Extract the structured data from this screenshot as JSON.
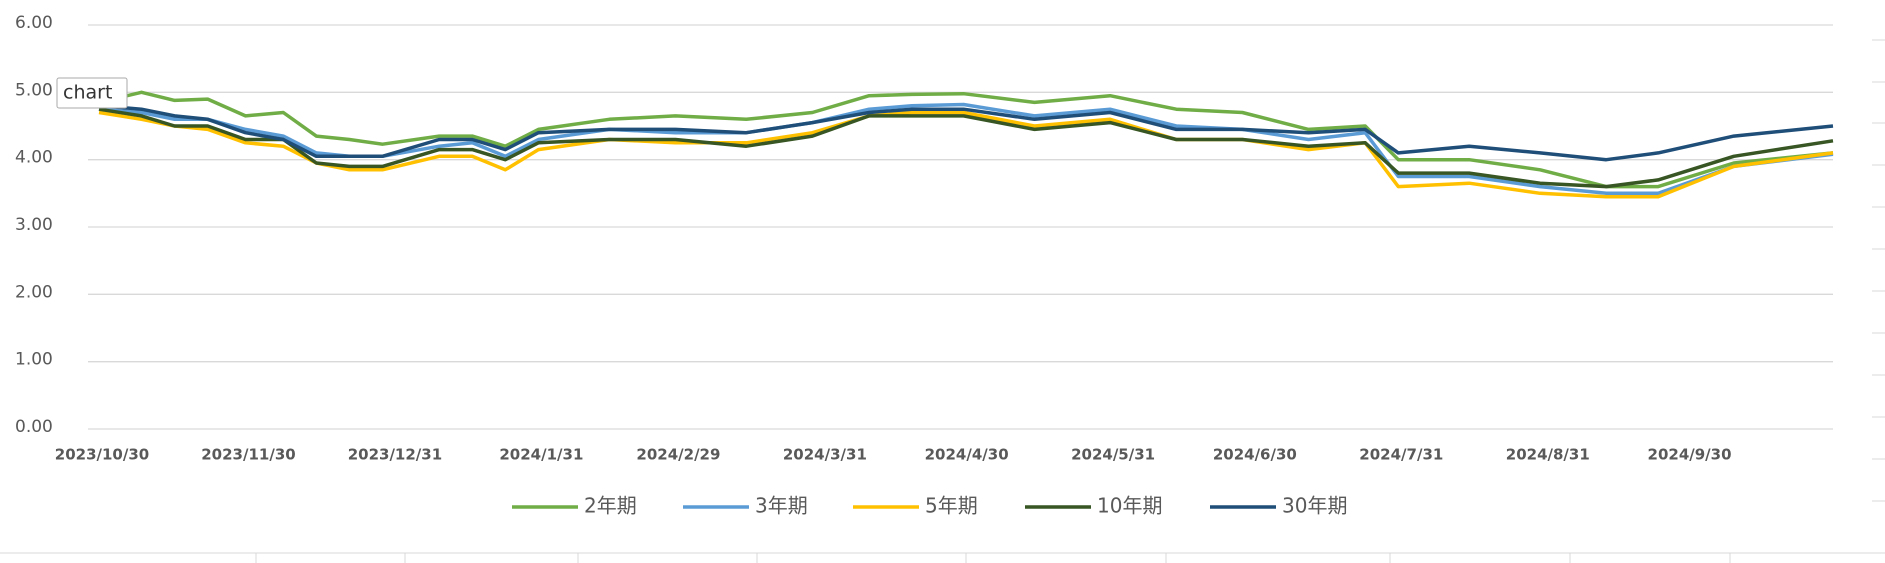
{
  "tooltip": "chart",
  "chart_data": {
    "type": "line",
    "x": [
      "2023/10/30",
      "2023/11/8",
      "2023/11/15",
      "2023/11/22",
      "2023/11/30",
      "2023/12/8",
      "2023/12/15",
      "2023/12/22",
      "2023/12/29",
      "2024/1/10",
      "2024/1/17",
      "2024/1/24",
      "2024/1/31",
      "2024/2/15",
      "2024/2/29",
      "2024/3/15",
      "2024/3/29",
      "2024/4/10",
      "2024/4/19",
      "2024/4/30",
      "2024/5/15",
      "2024/5/31",
      "2024/6/14",
      "2024/6/28",
      "2024/7/12",
      "2024/7/24",
      "2024/7/31",
      "2024/8/15",
      "2024/8/30",
      "2024/9/13",
      "2024/9/24",
      "2024/10/10",
      "2024/10/31"
    ],
    "xlim": [
      "2023/10/30",
      "2024/10/31"
    ],
    "xticks": [
      "2023/10/30",
      "2023/11/30",
      "2023/12/31",
      "2024/1/31",
      "2024/2/29",
      "2024/3/31",
      "2024/4/30",
      "2024/5/31",
      "2024/6/30",
      "2024/7/31",
      "2024/8/31",
      "2024/9/30"
    ],
    "ylim": [
      0,
      6
    ],
    "yticks": [
      {
        "value": 0,
        "label": "0.00"
      },
      {
        "value": 1,
        "label": "1.00"
      },
      {
        "value": 2,
        "label": "2.00"
      },
      {
        "value": 3,
        "label": "3.00"
      },
      {
        "value": 4,
        "label": "4.00"
      },
      {
        "value": 5,
        "label": "5.00"
      },
      {
        "value": 6,
        "label": "6.00"
      }
    ],
    "grid": true,
    "legend": "bottom",
    "series": [
      {
        "name": "2年期",
        "color": "#70ad47",
        "values": [
          4.85,
          5.0,
          4.88,
          4.9,
          4.65,
          4.7,
          4.35,
          4.3,
          4.23,
          4.35,
          4.35,
          4.2,
          4.45,
          4.6,
          4.65,
          4.6,
          4.7,
          4.95,
          4.97,
          4.98,
          4.85,
          4.95,
          4.75,
          4.7,
          4.45,
          4.5,
          4.0,
          4.0,
          3.85,
          3.6,
          3.6,
          3.95,
          4.1
        ]
      },
      {
        "name": "3年期",
        "color": "#5b9bd5",
        "values": [
          4.75,
          4.7,
          4.6,
          4.6,
          4.45,
          4.35,
          4.1,
          4.05,
          4.05,
          4.2,
          4.25,
          4.05,
          4.3,
          4.45,
          4.4,
          4.4,
          4.55,
          4.75,
          4.8,
          4.82,
          4.65,
          4.75,
          4.5,
          4.45,
          4.3,
          4.4,
          3.75,
          3.75,
          3.6,
          3.5,
          3.5,
          3.9,
          4.08
        ]
      },
      {
        "name": "5年期",
        "color": "#ffc000",
        "values": [
          4.7,
          4.6,
          4.5,
          4.45,
          4.25,
          4.2,
          3.95,
          3.85,
          3.85,
          4.05,
          4.05,
          3.85,
          4.15,
          4.3,
          4.25,
          4.25,
          4.4,
          4.65,
          4.7,
          4.7,
          4.5,
          4.6,
          4.3,
          4.3,
          4.15,
          4.25,
          3.6,
          3.65,
          3.5,
          3.45,
          3.45,
          3.9,
          4.1
        ]
      },
      {
        "name": "10年期",
        "color": "#375623",
        "values": [
          4.75,
          4.65,
          4.5,
          4.5,
          4.3,
          4.3,
          3.95,
          3.9,
          3.9,
          4.15,
          4.15,
          4.0,
          4.25,
          4.3,
          4.3,
          4.2,
          4.35,
          4.65,
          4.65,
          4.65,
          4.45,
          4.55,
          4.3,
          4.3,
          4.2,
          4.25,
          3.8,
          3.8,
          3.65,
          3.6,
          3.7,
          4.05,
          4.28
        ]
      },
      {
        "name": "30年期",
        "color": "#1f4e79",
        "values": [
          4.8,
          4.75,
          4.65,
          4.6,
          4.4,
          4.3,
          4.05,
          4.05,
          4.05,
          4.3,
          4.3,
          4.15,
          4.4,
          4.45,
          4.45,
          4.4,
          4.55,
          4.7,
          4.75,
          4.75,
          4.6,
          4.7,
          4.45,
          4.45,
          4.4,
          4.45,
          4.1,
          4.2,
          4.1,
          4.0,
          4.1,
          4.35,
          4.5
        ]
      }
    ]
  }
}
